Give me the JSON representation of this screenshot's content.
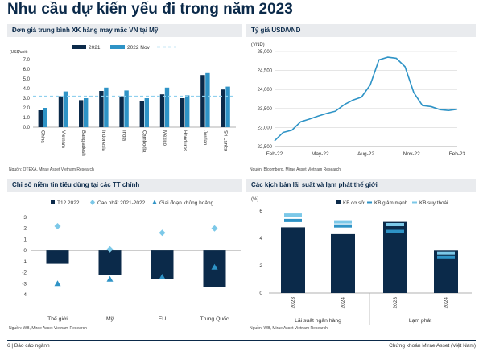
{
  "page": {
    "title": "Nhu cầu dự kiến yếu đi trong năm 2023",
    "footer_left": "6 | Báo cáo ngành",
    "footer_right": "Chứng khoán Mirae Asset (Việt Nam)"
  },
  "colors": {
    "dark": "#0b2a4a",
    "light": "#2e93c6",
    "lighter": "#7cc8e8",
    "panel": "#e9ebee"
  },
  "chart_data": [
    {
      "type": "bar",
      "title": "Đơn giá trung bình XK hàng may mặc VN tại Mỹ",
      "unit_label": "(US$/unit)",
      "source": "Nguồn: OTEXA, Mirae Asset Vietnam Research",
      "categories": [
        "China",
        "Vietnam",
        "Bangladesh",
        "Indonesia",
        "India",
        "Cambodia",
        "Mexico",
        "Honduras",
        "Jordan",
        "Sri Lanka"
      ],
      "series": [
        {
          "name": "2021",
          "values": [
            1.75,
            3.2,
            2.8,
            3.75,
            3.2,
            2.7,
            3.4,
            3.0,
            5.4,
            3.9
          ],
          "color": "#0b2a4a"
        },
        {
          "name": "2022 Nov",
          "values": [
            2.0,
            3.7,
            3.0,
            4.1,
            3.8,
            3.0,
            4.1,
            3.3,
            5.6,
            4.2
          ],
          "color": "#2e93c6"
        }
      ],
      "reference_line": {
        "name": "",
        "value": 3.2
      },
      "ylim": [
        0,
        7
      ],
      "yticks": [
        "0.0",
        "1.0",
        "2.0",
        "3.0",
        "4.0",
        "5.0",
        "6.0",
        "7.0"
      ],
      "grid": false,
      "legend": "top-right"
    },
    {
      "type": "line",
      "title": "Tỷ giá USD/VND",
      "unit_label": "(VND)",
      "source": "Nguồn: Bloomberg, Mirae Asset Vietnam Research",
      "x_ticks": [
        "Feb-22",
        "May-22",
        "Aug-22",
        "Nov-22",
        "Feb-23"
      ],
      "x": [
        "2022-02",
        "2022-03",
        "2022-04",
        "2022-05",
        "2022-06",
        "2022-07",
        "2022-07",
        "2022-08",
        "2022-09",
        "2022-09",
        "2022-10",
        "2022-10",
        "2022-10",
        "2022-11",
        "2022-11",
        "2022-11",
        "2022-12",
        "2022-12",
        "2022-12",
        "2023-01",
        "2023-01",
        "2023-02"
      ],
      "values": [
        22650,
        22850,
        22950,
        23150,
        23200,
        23300,
        23350,
        23450,
        23600,
        23700,
        23800,
        24100,
        24800,
        24850,
        24800,
        24600,
        23900,
        23600,
        23550,
        23450,
        23450,
        23480
      ],
      "ylim": [
        22500,
        25000
      ],
      "yticks": [
        "22,500",
        "23,000",
        "23,500",
        "24,000",
        "24,500",
        "25,000"
      ],
      "grid": true,
      "color": "#2e93c6"
    },
    {
      "type": "bar",
      "title": "Chỉ số niềm tin tiêu dùng tại các TT chính",
      "source": "Nguồn: WB, Mirae Asset Vietnam Research",
      "categories": [
        "Thế giới",
        "Mỹ",
        "EU",
        "Trung Quốc"
      ],
      "series": [
        {
          "name": "T12 2022",
          "values": [
            -1.2,
            -2.2,
            -2.6,
            -3.3
          ],
          "color": "#0b2a4a",
          "marker": "bar"
        },
        {
          "name": "Cao nhất 2021-2022",
          "values": [
            2.2,
            0.1,
            1.6,
            2.0
          ],
          "color": "#7cc8e8",
          "marker": "diamond"
        },
        {
          "name": "Giai đoạn khủng hoảng",
          "values": [
            -3.0,
            -2.6,
            -2.4,
            -1.5
          ],
          "color": "#2e93c6",
          "marker": "triangle"
        }
      ],
      "ylim": [
        -4,
        3
      ],
      "yticks": [
        "-4",
        "-3",
        "-2",
        "-1",
        "0",
        "1",
        "2",
        "3"
      ],
      "grid": false,
      "legend": "top"
    },
    {
      "type": "bar",
      "title": "Các kịch bản lãi suất và lạm phát thế giới",
      "unit_label": "(%)",
      "source": "Nguồn: WB, Mirae Asset Vietnam Research",
      "groups": [
        "Lãi suất ngân hàng",
        "Lạm phát"
      ],
      "categories": [
        "2023",
        "2024",
        "2023",
        "2024"
      ],
      "series": [
        {
          "name": "KB cơ sở",
          "values": [
            4.8,
            4.3,
            5.2,
            3.1
          ],
          "color": "#0b2a4a",
          "marker": "bar"
        },
        {
          "name": "KB giảm mạnh",
          "values": [
            5.3,
            4.9,
            4.5,
            2.6
          ],
          "color": "#2e93c6",
          "marker": "dash"
        },
        {
          "name": "KB suy thoái",
          "values": [
            5.7,
            5.2,
            5.0,
            2.9
          ],
          "color": "#7cc8e8",
          "marker": "dash"
        }
      ],
      "ylim": [
        0,
        6
      ],
      "yticks": [
        "0",
        "2",
        "4",
        "6"
      ],
      "grid": false,
      "legend": "top-right"
    }
  ]
}
